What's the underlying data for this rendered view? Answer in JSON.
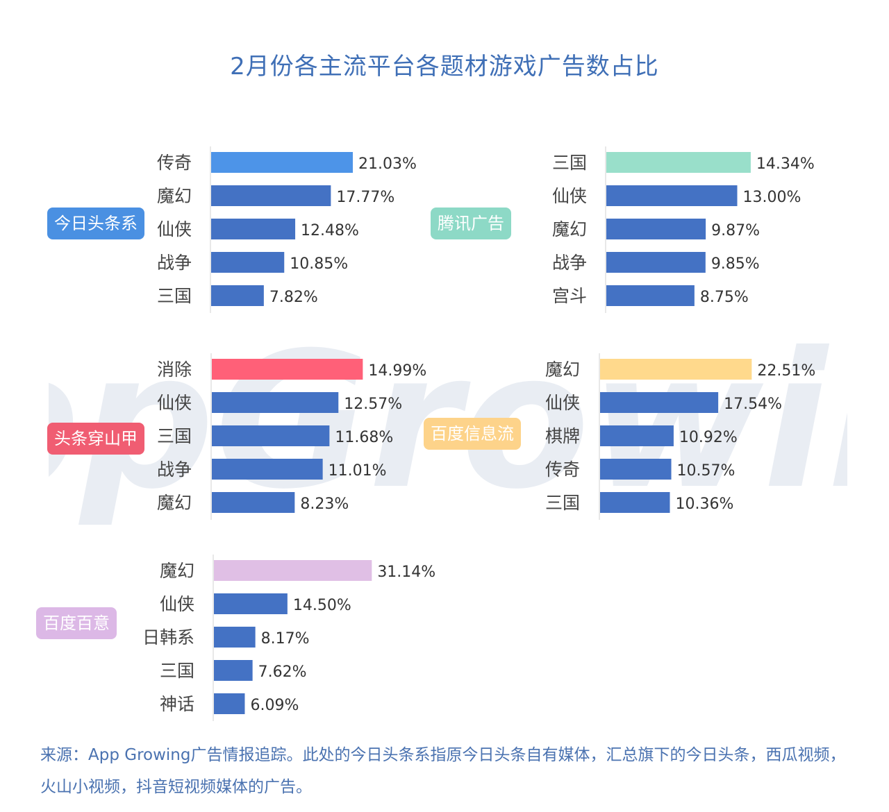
{
  "title": "2月份各主流平台各题材游戏广告数占比",
  "watermark": "AppGrowing",
  "source": "来源：App Growing广告情报追踪。此处的今日头条系指原今日头条自有媒体，汇总旗下的今日头条，西瓜视频，火山小视频，抖音短视频媒体的广告。",
  "colors": {
    "main_bar": "#4472c4",
    "title": "#3f6fb6"
  },
  "chart_data": [
    {
      "type": "bar",
      "orientation": "horizontal",
      "platform": "今日头条系",
      "badge_color": "#4a90e2",
      "highlight_color": "#4d94e8",
      "categories": [
        "传奇",
        "魔幻",
        "仙侠",
        "战争",
        "三国"
      ],
      "values": [
        21.03,
        17.77,
        12.48,
        10.85,
        7.82
      ],
      "labels": [
        "21.03%",
        "17.77%",
        "12.48%",
        "10.85%",
        "7.82%"
      ]
    },
    {
      "type": "bar",
      "orientation": "horizontal",
      "platform": "腾讯广告",
      "badge_color": "#8dd9c6",
      "highlight_color": "#99dfca",
      "categories": [
        "三国",
        "仙侠",
        "魔幻",
        "战争",
        "宫斗"
      ],
      "values": [
        14.34,
        13.0,
        9.87,
        9.85,
        8.75
      ],
      "labels": [
        "14.34%",
        "13.00%",
        "9.87%",
        "9.85%",
        "8.75%"
      ]
    },
    {
      "type": "bar",
      "orientation": "horizontal",
      "platform": "头条穿山甲",
      "badge_color": "#f05d72",
      "highlight_color": "#ff6078",
      "categories": [
        "消除",
        "仙侠",
        "三国",
        "战争",
        "魔幻"
      ],
      "values": [
        14.99,
        12.57,
        11.68,
        11.01,
        8.23
      ],
      "labels": [
        "14.99%",
        "12.57%",
        "11.68%",
        "11.01%",
        "8.23%"
      ]
    },
    {
      "type": "bar",
      "orientation": "horizontal",
      "platform": "百度信息流",
      "badge_color": "#fdd38a",
      "highlight_color": "#ffd98c",
      "categories": [
        "魔幻",
        "仙侠",
        "棋牌",
        "传奇",
        "三国"
      ],
      "values": [
        22.51,
        17.54,
        10.92,
        10.57,
        10.36
      ],
      "labels": [
        "22.51%",
        "17.54%",
        "10.92%",
        "10.57%",
        "10.36%"
      ]
    },
    {
      "type": "bar",
      "orientation": "horizontal",
      "platform": "百度百意",
      "badge_color": "#dcb8e6",
      "highlight_color": "#e0bfe5",
      "categories": [
        "魔幻",
        "仙侠",
        "日韩系",
        "三国",
        "神话"
      ],
      "values": [
        31.14,
        14.5,
        8.17,
        7.62,
        6.09
      ],
      "labels": [
        "31.14%",
        "14.50%",
        "8.17%",
        "7.62%",
        "6.09%"
      ]
    }
  ]
}
